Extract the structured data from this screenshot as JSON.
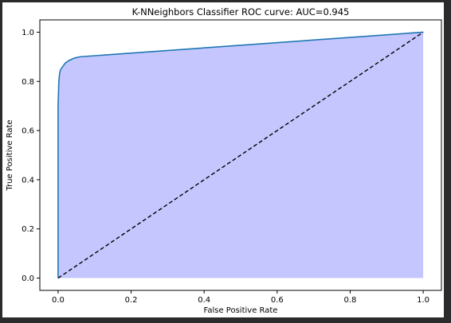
{
  "chart_data": {
    "type": "area",
    "title": "K-NNeighbors  Classifier ROC curve: AUC=0.945",
    "xlabel": "False Positive Rate",
    "ylabel": "True Positive Rate",
    "xlim": [
      -0.05,
      1.05
    ],
    "ylim": [
      -0.05,
      1.05
    ],
    "xticks": [
      0.0,
      0.2,
      0.4,
      0.6,
      0.8,
      1.0
    ],
    "yticks": [
      0.0,
      0.2,
      0.4,
      0.6,
      0.8,
      1.0
    ],
    "tick_labels_x": [
      "0.0",
      "0.2",
      "0.4",
      "0.6",
      "0.8",
      "1.0"
    ],
    "tick_labels_y": [
      "0.0",
      "0.2",
      "0.4",
      "0.6",
      "0.8",
      "1.0"
    ],
    "grid": false,
    "series": [
      {
        "type": "line",
        "color": "#1f77b4",
        "fill_color": "#c6c6ff",
        "x": [
          0.0,
          0.0,
          0.002,
          0.004,
          0.006,
          0.01,
          0.015,
          0.02,
          0.03,
          0.045,
          0.06,
          1.0
        ],
        "y": [
          0.0,
          0.7,
          0.8,
          0.83,
          0.845,
          0.855,
          0.865,
          0.875,
          0.885,
          0.895,
          0.9,
          1.0
        ]
      },
      {
        "type": "line",
        "style": "dashed",
        "color": "#000000",
        "x": [
          0.0,
          1.0
        ],
        "y": [
          0.0,
          1.0
        ]
      }
    ]
  }
}
